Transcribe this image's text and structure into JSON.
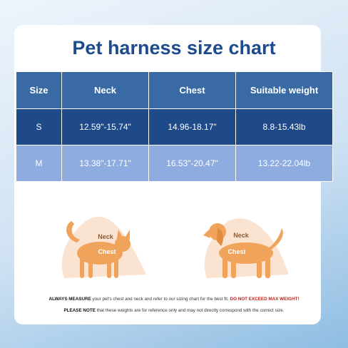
{
  "header": {
    "title": "Pet harness size chart"
  },
  "table": {
    "columns": [
      "Size",
      "Neck",
      "Chest",
      "Suitable weight"
    ],
    "rows": [
      [
        "S",
        "12.59\"-15.74\"",
        "14.96-18.17\"",
        "8.8-15.43lb"
      ],
      [
        "M",
        "13.38\"-17.71\"",
        "16.53\"-20.47\"",
        "13.22-22.04lb"
      ]
    ]
  },
  "illustrations": [
    {
      "neck_label": "Neck",
      "chest_label": "Chest"
    },
    {
      "neck_label": "Neck",
      "chest_label": "Chest"
    }
  ],
  "notes": [
    {
      "lead": "ALWAYS MEASURE",
      "body": " your pet's chest and neck and refer to our sizing chart for the best fit. ",
      "warning": "DO NOT EXCEED MAX WEIGHT!"
    },
    {
      "lead": "PLEASE NOTE",
      "body": " that these weights are for reference only and may not directly correspond with the correct size."
    }
  ]
}
